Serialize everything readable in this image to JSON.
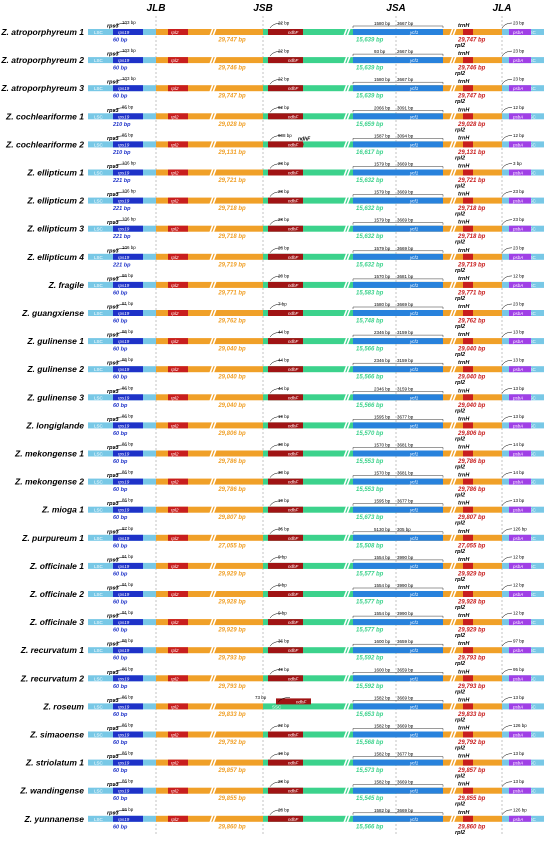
{
  "headers": [
    "JLB",
    "JSB",
    "JSA",
    "JLA"
  ],
  "region_labels": {
    "lsc": "LSC",
    "irb": "IRb",
    "ssc": "SSC",
    "ira": "IRa",
    "gene_rps19": "rps19",
    "gene_ndhF": "ndhF",
    "gene_ycf1": "ycf1",
    "gene_psbA": "psbA",
    "gene_trnH": "trnH",
    "gene_rps3": "rps3",
    "gene_rpl2": "rpl2"
  },
  "colors": {
    "lsc": "#78c8e6",
    "irb": "#f0a028",
    "ssc": "#3cd28c",
    "ira": "#f0a028",
    "rps19": "#1e32c8",
    "ndhF": "#a01414",
    "ycf1": "#2882dc",
    "psbA": "#a040e6",
    "trnH": "#c81e1e",
    "text": "#000000",
    "divider": "#aaaaaa"
  },
  "species": [
    {
      "name": "Z. atroporphyreum 1",
      "rps3": "rps3",
      "rps3_bp": "103 bp",
      "rps19_bp": "60 bp",
      "irb_len": "29,747 bp",
      "ssc_len": "15,639 bp",
      "ycf1_a": "1580 bp",
      "ycf1_b": "3667 bp",
      "ira_len": "29,747 bp",
      "ndhF_bp": "22 bp",
      "jla_bp": "23 bp",
      "flag": ""
    },
    {
      "name": "Z. atroporphyreum 2",
      "rps3": "rps3",
      "rps3_bp": "103 bp",
      "rps19_bp": "60 bp",
      "irb_len": "29,746 bp",
      "ssc_len": "15,639 bp",
      "ycf1_a": "93 bp",
      "ycf1_b": "2667 bp",
      "ira_len": "29,746 bp",
      "ndhF_bp": "22 bp",
      "jla_bp": "23 bp",
      "flag": ""
    },
    {
      "name": "Z. atroporphyreum 3",
      "rps3": "rps3",
      "rps3_bp": "103 bp",
      "rps19_bp": "60 bp",
      "irb_len": "29,747 bp",
      "ssc_len": "15,639 bp",
      "ycf1_a": "1580 bp",
      "ycf1_b": "3667 bp",
      "ira_len": "29,747 bp",
      "ndhF_bp": "22 bp",
      "jla_bp": "23 bp",
      "flag": ""
    },
    {
      "name": "Z. cochleariforme 1",
      "rps3": "rps3",
      "rps3_bp": "85 bp",
      "rps19_bp": "210 bp",
      "irb_len": "29,028 bp",
      "ssc_len": "15,659 bp",
      "ycf1_a": "2066 bp",
      "ycf1_b": "3091 bp",
      "ira_len": "29,028 bp",
      "ndhF_bp": "62 bp",
      "jla_bp": "12 bp",
      "flag": ""
    },
    {
      "name": "Z. cochleariforme 2",
      "rps3": "rps3",
      "rps3_bp": "85 bp",
      "rps19_bp": "210 bp",
      "irb_len": "29,131 bp",
      "ssc_len": "16,617 bp",
      "ycf1_a": "1587 bp",
      "ycf1_b": "3094 bp",
      "ira_len": "29,131 bp",
      "ndhF_bp": "608 bp",
      "jla_bp": "12 bp",
      "flag": "ndhF"
    },
    {
      "name": "Z. ellipticum 1",
      "rps3": "rps3",
      "rps3_bp": "106 bp",
      "rps19_bp": "221 bp",
      "irb_len": "29,721 bp",
      "ssc_len": "15,632 bp",
      "ycf1_a": "1579 bp",
      "ycf1_b": "3669 bp",
      "ira_len": "29,721 bp",
      "ndhF_bp": "28 bp",
      "jla_bp": "3 bp",
      "flag": ""
    },
    {
      "name": "Z. ellipticum 2",
      "rps3": "rps3",
      "rps3_bp": "106 bp",
      "rps19_bp": "221 bp",
      "irb_len": "29,718 bp",
      "ssc_len": "15,632 bp",
      "ycf1_a": "1579 bp",
      "ycf1_b": "3669 bp",
      "ira_len": "29,718 bp",
      "ndhF_bp": "28 bp",
      "jla_bp": "23 bp",
      "flag": ""
    },
    {
      "name": "Z. ellipticum 3",
      "rps3": "rps3",
      "rps3_bp": "106 bp",
      "rps19_bp": "221 bp",
      "irb_len": "29,718 bp",
      "ssc_len": "15,632 bp",
      "ycf1_a": "1579 bp",
      "ycf1_b": "3669 bp",
      "ira_len": "29,718 bp",
      "ndhF_bp": "28 bp",
      "jla_bp": "23 bp",
      "flag": ""
    },
    {
      "name": "Z. ellipticum 4",
      "rps3": "rps3",
      "rps3_bp": "106 bp",
      "rps19_bp": "221 bp",
      "irb_len": "29,719 bp",
      "ssc_len": "15,632 bp",
      "ycf1_a": "1579 bp",
      "ycf1_b": "3669 bp",
      "ira_len": "29,719 bp",
      "ndhF_bp": "28 bp",
      "jla_bp": "23 bp",
      "flag": ""
    },
    {
      "name": "Z. fragile",
      "rps3": "rps3",
      "rps3_bp": "86 bp",
      "rps19_bp": "60 bp",
      "irb_len": "29,771 bp",
      "ssc_len": "15,583 bp",
      "ycf1_a": "1570 bp",
      "ycf1_b": "3681 bp",
      "ira_len": "29,771 bp",
      "ndhF_bp": "20 bp",
      "jla_bp": "12 bp",
      "flag": ""
    },
    {
      "name": "Z. guangxiense",
      "rps3": "rps3",
      "rps3_bp": "81 bp",
      "rps19_bp": "60 bp",
      "irb_len": "29,762 bp",
      "ssc_len": "15,748 bp",
      "ycf1_a": "1580 bp",
      "ycf1_b": "3669 bp",
      "ira_len": "29,762 bp",
      "ndhF_bp": "7 bp",
      "jla_bp": "23 bp",
      "flag": ""
    },
    {
      "name": "Z. gulinense 1",
      "rps3": "rps3",
      "rps3_bp": "86 bp",
      "rps19_bp": "60 bp",
      "irb_len": "29,040 bp",
      "ssc_len": "15,566 bp",
      "ycf1_a": "2346 bp",
      "ycf1_b": "3159 bp",
      "ira_len": "29,040 bp",
      "ndhF_bp": "44 bp",
      "jla_bp": "13 bp",
      "flag": ""
    },
    {
      "name": "Z. gulinense 2",
      "rps3": "rps3",
      "rps3_bp": "86 bp",
      "rps19_bp": "60 bp",
      "irb_len": "29,040 bp",
      "ssc_len": "15,566 bp",
      "ycf1_a": "2346 bp",
      "ycf1_b": "3159 bp",
      "ira_len": "29,040 bp",
      "ndhF_bp": "44 bp",
      "jla_bp": "13 bp",
      "flag": ""
    },
    {
      "name": "Z. gulinense 3",
      "rps3": "rps3",
      "rps3_bp": "86 bp",
      "rps19_bp": "60 bp",
      "irb_len": "29,040 bp",
      "ssc_len": "15,566 bp",
      "ycf1_a": "2346 bp",
      "ycf1_b": "3159 bp",
      "ira_len": "29,040 bp",
      "ndhF_bp": "44 bp",
      "jla_bp": "13 bp",
      "flag": ""
    },
    {
      "name": "Z. longiglande",
      "rps3": "rps3",
      "rps3_bp": "86 bp",
      "rps19_bp": "60 bp",
      "irb_len": "29,806 bp",
      "ssc_len": "15,570 bp",
      "ycf1_a": "1595 bp",
      "ycf1_b": "3677 bp",
      "ira_len": "29,806 bp",
      "ndhF_bp": "19 bp",
      "jla_bp": "13 bp",
      "flag": ""
    },
    {
      "name": "Z. mekongense 1",
      "rps3": "rps3",
      "rps3_bp": "86 bp",
      "rps19_bp": "60 bp",
      "irb_len": "29,786 bp",
      "ssc_len": "15,553 bp",
      "ycf1_a": "1570 bp",
      "ycf1_b": "3681 bp",
      "ira_len": "29,786 bp",
      "ndhF_bp": "30 bp",
      "jla_bp": "14 bp",
      "flag": ""
    },
    {
      "name": "Z. mekongense 2",
      "rps3": "rps3",
      "rps3_bp": "86 bp",
      "rps19_bp": "60 bp",
      "irb_len": "29,786 bp",
      "ssc_len": "15,553 bp",
      "ycf1_a": "1570 bp",
      "ycf1_b": "3681 bp",
      "ira_len": "29,786 bp",
      "ndhF_bp": "30 bp",
      "jla_bp": "14 bp",
      "flag": ""
    },
    {
      "name": "Z. mioga 1",
      "rps3": "rps3",
      "rps3_bp": "86 bp",
      "rps19_bp": "60 bp",
      "irb_len": "29,807 bp",
      "ssc_len": "15,673 bp",
      "ycf1_a": "1595 bp",
      "ycf1_b": "3677 bp",
      "ira_len": "29,807 bp",
      "ndhF_bp": "19 bp",
      "jla_bp": "13 bp",
      "flag": ""
    },
    {
      "name": "Z. purpureum 1",
      "rps3": "rps3",
      "rps3_bp": "87 bp",
      "rps19_bp": "60 bp",
      "irb_len": "27,055 bp",
      "ssc_len": "15,508 bp",
      "ycf1_a": "5130 bp",
      "ycf1_b": "305 bp",
      "ira_len": "27,055 bp",
      "ndhF_bp": "36 bp",
      "jla_bp": "126 bp",
      "flag": ""
    },
    {
      "name": "Z. officinale 1",
      "rps3": "rps3",
      "rps3_bp": "91 bp",
      "rps19_bp": "60 bp",
      "irb_len": "29,929 bp",
      "ssc_len": "15,577 bp",
      "ycf1_a": "1554 bp",
      "ycf1_b": "3990 bp",
      "ira_len": "29,929 bp",
      "ndhF_bp": "9 bp",
      "jla_bp": "12 bp",
      "flag": ""
    },
    {
      "name": "Z. officinale 2",
      "rps3": "rps3",
      "rps3_bp": "91 bp",
      "rps19_bp": "60 bp",
      "irb_len": "29,928 bp",
      "ssc_len": "15,577 bp",
      "ycf1_a": "1554 bp",
      "ycf1_b": "3990 bp",
      "ira_len": "29,928 bp",
      "ndhF_bp": "9 bp",
      "jla_bp": "12 bp",
      "flag": ""
    },
    {
      "name": "Z. officinale 3",
      "rps3": "rps3",
      "rps3_bp": "91 bp",
      "rps19_bp": "60 bp",
      "irb_len": "29,929 bp",
      "ssc_len": "15,577 bp",
      "ycf1_a": "1554 bp",
      "ycf1_b": "3990 bp",
      "ira_len": "29,929 bp",
      "ndhF_bp": "9 bp",
      "jla_bp": "12 bp",
      "flag": ""
    },
    {
      "name": "Z. recurvatum 1",
      "rps3": "rps3",
      "rps3_bp": "86 bp",
      "rps19_bp": "60 bp",
      "irb_len": "29,793 bp",
      "ssc_len": "15,592 bp",
      "ycf1_a": "1600 bp",
      "ycf1_b": "3659 bp",
      "ira_len": "29,793 bp",
      "ndhF_bp": "36 bp",
      "jla_bp": "97 bp",
      "flag": ""
    },
    {
      "name": "Z. recurvatum 2",
      "rps3": "rps3",
      "rps3_bp": "86 bp",
      "rps19_bp": "60 bp",
      "irb_len": "29,793 bp",
      "ssc_len": "15,592 bp",
      "ycf1_a": "1600 bp",
      "ycf1_b": "3659 bp",
      "ira_len": "29,793 bp",
      "ndhF_bp": "49 bp",
      "jla_bp": "95 bp",
      "flag": ""
    },
    {
      "name": "Z. roseum",
      "rps3": "rps3",
      "rps3_bp": "86 bp",
      "rps19_bp": "60 bp",
      "irb_len": "29,833 bp",
      "ssc_len": "15,653 bp",
      "ycf1_a": "1582 bp",
      "ycf1_b": "3669 bp",
      "ira_len": "29,833 bp",
      "ndhF_bp": "73 bp",
      "jla_bp": "13 bp",
      "flag": "roseum"
    },
    {
      "name": "Z. simaoense",
      "rps3": "rps3",
      "rps3_bp": "86 bp",
      "rps19_bp": "60 bp",
      "irb_len": "29,792 bp",
      "ssc_len": "15,568 bp",
      "ycf1_a": "1582 bp",
      "ycf1_b": "3669 bp",
      "ira_len": "29,792 bp",
      "ndhF_bp": "22 bp",
      "jla_bp": "126 bp",
      "flag": ""
    },
    {
      "name": "Z. striolatum 1",
      "rps3": "rps3",
      "rps3_bp": "86 bp",
      "rps19_bp": "60 bp",
      "irb_len": "29,857 bp",
      "ssc_len": "15,573 bp",
      "ycf1_a": "1582 bp",
      "ycf1_b": "3677 bp",
      "ira_len": "29,857 bp",
      "ndhF_bp": "19 bp",
      "jla_bp": "13 bp",
      "flag": ""
    },
    {
      "name": "Z. wandingense",
      "rps3": "rps3",
      "rps3_bp": "86 bp",
      "rps19_bp": "60 bp",
      "irb_len": "29,855 bp",
      "ssc_len": "15,545 bp",
      "ycf1_a": "1582 bp",
      "ycf1_b": "3669 bp",
      "ira_len": "29,855 bp",
      "ndhF_bp": "28 bp",
      "jla_bp": "13 bp",
      "flag": ""
    },
    {
      "name": "Z. yunnanense",
      "rps3": "rps3",
      "rps3_bp": "86 bp",
      "rps19_bp": "60 bp",
      "irb_len": "29,860 bp",
      "ssc_len": "15,566 bp",
      "ycf1_a": "1582 bp",
      "ycf1_b": "3669 bp",
      "ira_len": "29,860 bp",
      "ndhF_bp": "28 bp",
      "jla_bp": "126 bp",
      "flag": ""
    }
  ]
}
